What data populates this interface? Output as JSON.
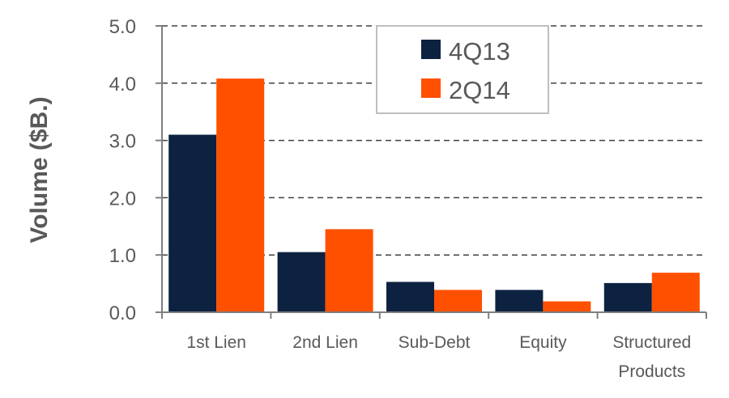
{
  "chart_data": {
    "type": "bar",
    "title": "",
    "xlabel": "",
    "ylabel": "Volume ($B.)",
    "ylim": [
      0,
      5
    ],
    "yticks": [
      "0.0",
      "1.0",
      "2.0",
      "3.0",
      "4.0",
      "5.0"
    ],
    "grid": "horizontal dashed",
    "legend_position": "top-center",
    "categories": [
      [
        "1st Lien"
      ],
      [
        "2nd Lien"
      ],
      [
        "Sub-Debt"
      ],
      [
        "Equity"
      ],
      [
        "Structured",
        "Products"
      ]
    ],
    "series": [
      {
        "name": "4Q13",
        "color": "#0d2240",
        "values": [
          3.1,
          1.05,
          0.53,
          0.39,
          0.51
        ]
      },
      {
        "name": "2Q14",
        "color": "#ff5000",
        "values": [
          4.08,
          1.45,
          0.39,
          0.19,
          0.69
        ]
      }
    ]
  }
}
